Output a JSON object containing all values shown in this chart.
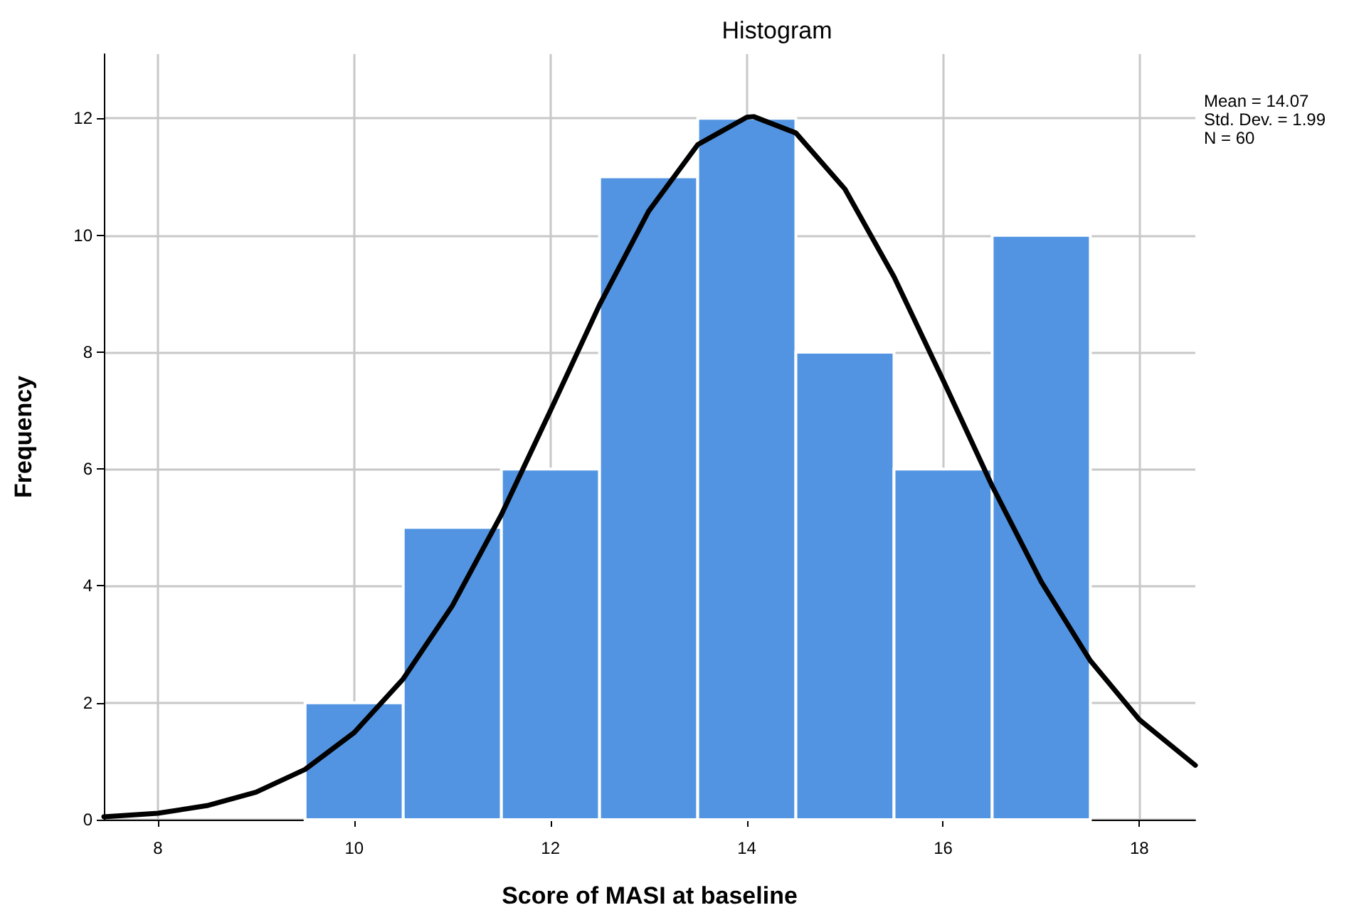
{
  "chart_data": {
    "type": "histogram",
    "title": "Histogram",
    "xlabel": "Score of MASI at baseline",
    "ylabel": "Frequency",
    "annotations": [
      "Mean = 14.07",
      "Std. Dev. = 1.99",
      "N = 60"
    ],
    "bins": [
      9.5,
      10.5,
      11.5,
      12.5,
      13.5,
      14.5,
      15.5,
      16.5,
      17.5
    ],
    "values": [
      2,
      5,
      6,
      11,
      12,
      8,
      6,
      10
    ],
    "color": "#5294e2",
    "series": [
      {
        "type": "line",
        "color": "#000000",
        "marker": "none",
        "line_style": "solid",
        "x": [
          7.45,
          8,
          8.5,
          9,
          9.5,
          10,
          10.5,
          11,
          11.5,
          12,
          12.5,
          13,
          13.5,
          14,
          14.07,
          14.5,
          15,
          15.5,
          16,
          16.5,
          17,
          17.5,
          18,
          18.57
        ],
        "values": [
          0.05,
          0.11,
          0.24,
          0.47,
          0.86,
          1.49,
          2.41,
          3.66,
          5.22,
          7.0,
          8.81,
          10.41,
          11.55,
          12.02,
          12.03,
          11.75,
          10.79,
          9.29,
          7.52,
          5.71,
          4.07,
          2.72,
          1.71,
          0.93
        ]
      }
    ],
    "xlim": [
      7.45,
      18.57
    ],
    "ylim": [
      0,
      13.1
    ],
    "xticks": [
      8,
      10,
      12,
      14,
      16,
      18
    ],
    "yticks": [
      0,
      2,
      4,
      6,
      8,
      10,
      12
    ],
    "grid": true
  }
}
